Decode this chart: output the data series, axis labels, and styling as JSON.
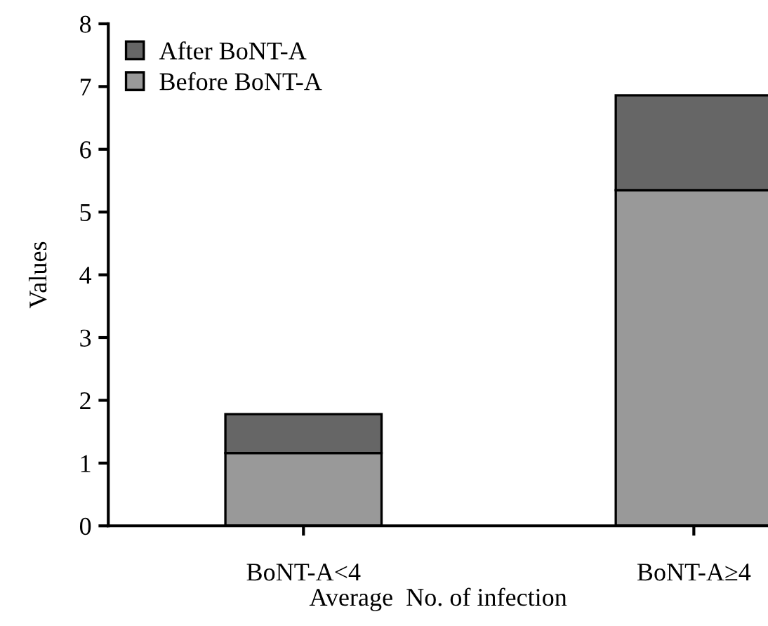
{
  "chart_data": {
    "type": "bar",
    "stacked": true,
    "xlabel": "Average  No. of infection",
    "ylabel": "Values",
    "categories": [
      "BoNT-A<4",
      "BoNT-A≥4"
    ],
    "series": [
      {
        "name": "Before BoNT-A",
        "color": "#999999",
        "values": [
          1.16,
          5.35
        ]
      },
      {
        "name": "After BoNT-A",
        "color": "#666666",
        "values": [
          0.62,
          1.51
        ]
      }
    ],
    "ylim": [
      0,
      8
    ],
    "yticks": [
      0,
      1,
      2,
      3,
      4,
      5,
      6,
      7,
      8
    ],
    "grid": false,
    "legend": "top left"
  }
}
